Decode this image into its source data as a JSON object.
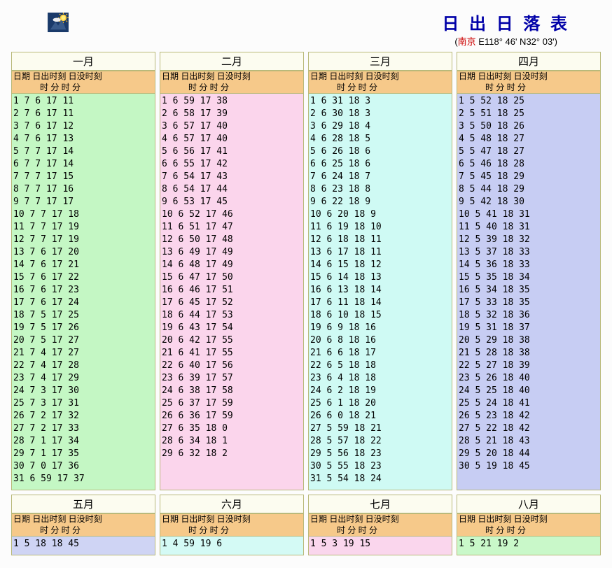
{
  "page": {
    "title": "日 出 日 落 表",
    "loc_open": "(",
    "loc_city": "南京",
    "loc_rest": " E118° 46' N32° 03')"
  },
  "header": {
    "line1": "日期  日出时刻 日没时刻",
    "line2": "时 分   时 分"
  },
  "months": [
    {
      "name": "一月",
      "bg": "bg-green",
      "rows": [
        [
          1,
          7,
          6,
          17,
          11
        ],
        [
          2,
          7,
          6,
          17,
          11
        ],
        [
          3,
          7,
          6,
          17,
          12
        ],
        [
          4,
          7,
          6,
          17,
          13
        ],
        [
          5,
          7,
          7,
          17,
          14
        ],
        [
          6,
          7,
          7,
          17,
          14
        ],
        [
          7,
          7,
          7,
          17,
          15
        ],
        [
          8,
          7,
          7,
          17,
          16
        ],
        [
          9,
          7,
          7,
          17,
          17
        ],
        [
          10,
          7,
          7,
          17,
          18
        ],
        [
          11,
          7,
          7,
          17,
          19
        ],
        [
          12,
          7,
          7,
          17,
          19
        ],
        [
          13,
          7,
          6,
          17,
          20
        ],
        [
          14,
          7,
          6,
          17,
          21
        ],
        [
          15,
          7,
          6,
          17,
          22
        ],
        [
          16,
          7,
          6,
          17,
          23
        ],
        [
          17,
          7,
          6,
          17,
          24
        ],
        [
          18,
          7,
          5,
          17,
          25
        ],
        [
          19,
          7,
          5,
          17,
          26
        ],
        [
          20,
          7,
          5,
          17,
          27
        ],
        [
          21,
          7,
          4,
          17,
          27
        ],
        [
          22,
          7,
          4,
          17,
          28
        ],
        [
          23,
          7,
          4,
          17,
          29
        ],
        [
          24,
          7,
          3,
          17,
          30
        ],
        [
          25,
          7,
          3,
          17,
          31
        ],
        [
          26,
          7,
          2,
          17,
          32
        ],
        [
          27,
          7,
          2,
          17,
          33
        ],
        [
          28,
          7,
          1,
          17,
          34
        ],
        [
          29,
          7,
          1,
          17,
          35
        ],
        [
          30,
          7,
          0,
          17,
          36
        ],
        [
          31,
          6,
          59,
          17,
          37
        ]
      ]
    },
    {
      "name": "二月",
      "bg": "bg-pink",
      "rows": [
        [
          1,
          6,
          59,
          17,
          38
        ],
        [
          2,
          6,
          58,
          17,
          39
        ],
        [
          3,
          6,
          57,
          17,
          40
        ],
        [
          4,
          6,
          57,
          17,
          40
        ],
        [
          5,
          6,
          56,
          17,
          41
        ],
        [
          6,
          6,
          55,
          17,
          42
        ],
        [
          7,
          6,
          54,
          17,
          43
        ],
        [
          8,
          6,
          54,
          17,
          44
        ],
        [
          9,
          6,
          53,
          17,
          45
        ],
        [
          10,
          6,
          52,
          17,
          46
        ],
        [
          11,
          6,
          51,
          17,
          47
        ],
        [
          12,
          6,
          50,
          17,
          48
        ],
        [
          13,
          6,
          49,
          17,
          49
        ],
        [
          14,
          6,
          48,
          17,
          49
        ],
        [
          15,
          6,
          47,
          17,
          50
        ],
        [
          16,
          6,
          46,
          17,
          51
        ],
        [
          17,
          6,
          45,
          17,
          52
        ],
        [
          18,
          6,
          44,
          17,
          53
        ],
        [
          19,
          6,
          43,
          17,
          54
        ],
        [
          20,
          6,
          42,
          17,
          55
        ],
        [
          21,
          6,
          41,
          17,
          55
        ],
        [
          22,
          6,
          40,
          17,
          56
        ],
        [
          23,
          6,
          39,
          17,
          57
        ],
        [
          24,
          6,
          38,
          17,
          58
        ],
        [
          25,
          6,
          37,
          17,
          59
        ],
        [
          26,
          6,
          36,
          17,
          59
        ],
        [
          27,
          6,
          35,
          18,
          0
        ],
        [
          28,
          6,
          34,
          18,
          1
        ],
        [
          29,
          6,
          32,
          18,
          2
        ]
      ]
    },
    {
      "name": "三月",
      "bg": "bg-cyan",
      "rows": [
        [
          1,
          6,
          31,
          18,
          3
        ],
        [
          2,
          6,
          30,
          18,
          3
        ],
        [
          3,
          6,
          29,
          18,
          4
        ],
        [
          4,
          6,
          28,
          18,
          5
        ],
        [
          5,
          6,
          26,
          18,
          6
        ],
        [
          6,
          6,
          25,
          18,
          6
        ],
        [
          7,
          6,
          24,
          18,
          7
        ],
        [
          8,
          6,
          23,
          18,
          8
        ],
        [
          9,
          6,
          22,
          18,
          9
        ],
        [
          10,
          6,
          20,
          18,
          9
        ],
        [
          11,
          6,
          19,
          18,
          10
        ],
        [
          12,
          6,
          18,
          18,
          11
        ],
        [
          13,
          6,
          17,
          18,
          11
        ],
        [
          14,
          6,
          15,
          18,
          12
        ],
        [
          15,
          6,
          14,
          18,
          13
        ],
        [
          16,
          6,
          13,
          18,
          14
        ],
        [
          17,
          6,
          11,
          18,
          14
        ],
        [
          18,
          6,
          10,
          18,
          15
        ],
        [
          19,
          6,
          9,
          18,
          16
        ],
        [
          20,
          6,
          8,
          18,
          16
        ],
        [
          21,
          6,
          6,
          18,
          17
        ],
        [
          22,
          6,
          5,
          18,
          18
        ],
        [
          23,
          6,
          4,
          18,
          18
        ],
        [
          24,
          6,
          2,
          18,
          19
        ],
        [
          25,
          6,
          1,
          18,
          20
        ],
        [
          26,
          6,
          0,
          18,
          21
        ],
        [
          27,
          5,
          59,
          18,
          21
        ],
        [
          28,
          5,
          57,
          18,
          22
        ],
        [
          29,
          5,
          56,
          18,
          23
        ],
        [
          30,
          5,
          55,
          18,
          23
        ],
        [
          31,
          5,
          54,
          18,
          24
        ]
      ]
    },
    {
      "name": "四月",
      "bg": "bg-violet",
      "rows": [
        [
          1,
          5,
          52,
          18,
          25
        ],
        [
          2,
          5,
          51,
          18,
          25
        ],
        [
          3,
          5,
          50,
          18,
          26
        ],
        [
          4,
          5,
          48,
          18,
          27
        ],
        [
          5,
          5,
          47,
          18,
          27
        ],
        [
          6,
          5,
          46,
          18,
          28
        ],
        [
          7,
          5,
          45,
          18,
          29
        ],
        [
          8,
          5,
          44,
          18,
          29
        ],
        [
          9,
          5,
          42,
          18,
          30
        ],
        [
          10,
          5,
          41,
          18,
          31
        ],
        [
          11,
          5,
          40,
          18,
          31
        ],
        [
          12,
          5,
          39,
          18,
          32
        ],
        [
          13,
          5,
          37,
          18,
          33
        ],
        [
          14,
          5,
          36,
          18,
          33
        ],
        [
          15,
          5,
          35,
          18,
          34
        ],
        [
          16,
          5,
          34,
          18,
          35
        ],
        [
          17,
          5,
          33,
          18,
          35
        ],
        [
          18,
          5,
          32,
          18,
          36
        ],
        [
          19,
          5,
          31,
          18,
          37
        ],
        [
          20,
          5,
          29,
          18,
          38
        ],
        [
          21,
          5,
          28,
          18,
          38
        ],
        [
          22,
          5,
          27,
          18,
          39
        ],
        [
          23,
          5,
          26,
          18,
          40
        ],
        [
          24,
          5,
          25,
          18,
          40
        ],
        [
          25,
          5,
          24,
          18,
          41
        ],
        [
          26,
          5,
          23,
          18,
          42
        ],
        [
          27,
          5,
          22,
          18,
          42
        ],
        [
          28,
          5,
          21,
          18,
          43
        ],
        [
          29,
          5,
          20,
          18,
          44
        ],
        [
          30,
          5,
          19,
          18,
          45
        ]
      ]
    }
  ],
  "months2": [
    {
      "name": "五月",
      "bg": "bg-violet2",
      "rows": [
        [
          1,
          5,
          18,
          18,
          45
        ]
      ]
    },
    {
      "name": "六月",
      "bg": "bg-cyan2",
      "rows": [
        [
          1,
          4,
          59,
          19,
          6
        ]
      ]
    },
    {
      "name": "七月",
      "bg": "bg-pink2",
      "rows": [
        [
          1,
          5,
          3,
          19,
          15
        ]
      ]
    },
    {
      "name": "八月",
      "bg": "bg-green2",
      "rows": [
        [
          1,
          5,
          21,
          19,
          2
        ]
      ]
    }
  ]
}
